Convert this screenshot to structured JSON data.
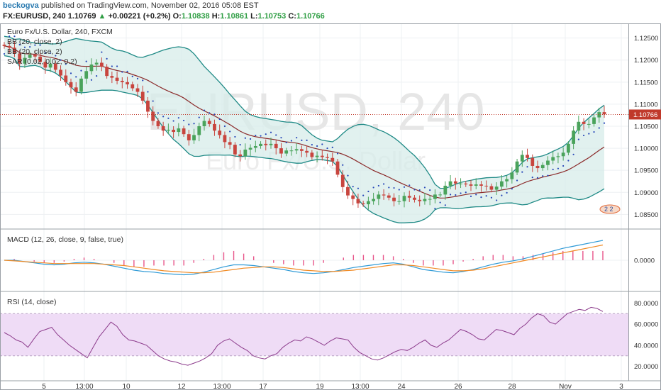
{
  "header": {
    "author": "beckogva",
    "published_text": "published on TradingView.com, November 02, 2016 05:08 EST",
    "symbol": "FX:EURUSD, 240",
    "last": "1.10769",
    "change_arrow": "▲",
    "change": "+0.00221 (+0.2%)",
    "open_label": "O:",
    "open": "1.10838",
    "high_label": "H:",
    "high": "1.10861",
    "low_label": "L:",
    "low": "1.10753",
    "close_label": "C:",
    "close": "1.10766"
  },
  "main_pane": {
    "instrument_label": "Euro Fx/U.S. Dollar, 240, FXCM",
    "indicators": [
      "BB (20, close, 2)",
      "BB (20, close, 2)",
      "SAR (0.02, 0.02, 0.2)"
    ],
    "watermark_symbol": "EURUSD, 240",
    "watermark_name": "Euro Fx/U.S. Dollar",
    "price_axis": [
      "1.12500",
      "1.12000",
      "1.11500",
      "1.11000",
      "1.10500",
      "1.10000",
      "1.09500",
      "1.09000",
      "1.08500"
    ],
    "last_price_tag": "1.10766",
    "event_marker_text": "2 2"
  },
  "macd_pane": {
    "label": "MACD (12, 26, close, 9, false, true)",
    "axis": [
      "0.0000"
    ]
  },
  "rsi_pane": {
    "label": "RSI (14, close)",
    "axis": [
      "80.0000",
      "60.0000",
      "40.0000",
      "20.0000"
    ]
  },
  "time_axis": [
    "5",
    "13:00",
    "10",
    "12",
    "13:00",
    "17",
    "19",
    "13:00",
    "24",
    "26",
    "28",
    "Nov",
    "3"
  ],
  "colors": {
    "up_candle": "#4aa35b",
    "down_candle": "#c8453e",
    "bb_band": "#1f8a86",
    "bb_fill": "#d7ecea",
    "bb_basis": "#8b2a2a",
    "sar": "#2747b8",
    "macd_line": "#2f9ad6",
    "signal_line": "#f08a24",
    "histogram": "#e8558a",
    "rsi_line": "#8b3a8b",
    "rsi_band": "#efdcf6",
    "last_price": "#c0392b"
  },
  "chart_data": [
    {
      "type": "candlestick",
      "title": "Euro Fx/U.S. Dollar, 240, FXCM",
      "ylim": [
        1.082,
        1.128
      ],
      "closes": [
        1.1232,
        1.1228,
        1.1215,
        1.1192,
        1.1205,
        1.1212,
        1.1208,
        1.1196,
        1.1183,
        1.1192,
        1.1178,
        1.1165,
        1.115,
        1.1138,
        1.1128,
        1.1158,
        1.1175,
        1.119,
        1.1194,
        1.1185,
        1.1164,
        1.116,
        1.1153,
        1.115,
        1.1145,
        1.1136,
        1.1128,
        1.1108,
        1.1083,
        1.1062,
        1.105,
        1.104,
        1.1042,
        1.1037,
        1.1045,
        1.1032,
        1.1018,
        1.103,
        1.105,
        1.1062,
        1.1055,
        1.104,
        1.103,
        1.1014,
        1.1008,
        1.0986,
        1.0982,
        1.0997,
        1.1001,
        1.1005,
        1.101,
        1.1007,
        1.101,
        1.1,
        1.0988,
        1.0995,
        1.0995,
        1.0998,
        1.0994,
        1.099,
        1.098,
        1.0983,
        1.098,
        1.0978,
        1.097,
        1.094,
        1.0912,
        1.0893,
        1.0885,
        1.0875,
        1.0873,
        1.088,
        1.0885,
        1.0895,
        1.0893,
        1.0888,
        1.088,
        1.088,
        1.0892,
        1.0888,
        1.0883,
        1.088,
        1.0885,
        1.0885,
        1.0895,
        1.0895,
        1.0915,
        1.0925,
        1.092,
        1.092,
        1.0918,
        1.0915,
        1.0918,
        1.0915,
        1.0914,
        1.0906,
        1.0913,
        1.0925,
        1.093,
        1.0945,
        1.097,
        1.0985,
        1.0978,
        1.096,
        1.0955,
        1.0962,
        1.0972,
        1.098,
        1.0982,
        1.099,
        1.101,
        1.104,
        1.106,
        1.1055,
        1.1055,
        1.107,
        1.1082,
        1.1077
      ]
    },
    {
      "type": "line",
      "title": "MACD (12, 26, close, 9, false, true)",
      "series": [
        {
          "name": "MACD",
          "values": [
            0.0,
            0.0,
            -0.0002,
            -0.0004,
            -0.0006,
            -0.0007,
            -0.0006,
            -0.0004,
            -0.0003,
            -0.0004,
            -0.0006,
            -0.0009,
            -0.0012,
            -0.0015,
            -0.0017,
            -0.0018,
            -0.002,
            -0.0021,
            -0.0022,
            -0.0021,
            -0.0018,
            -0.0014,
            -0.001,
            -0.0007,
            -0.0007,
            -0.0008,
            -0.001,
            -0.0012,
            -0.0014,
            -0.0017,
            -0.0019,
            -0.002,
            -0.0019,
            -0.0017,
            -0.0014,
            -0.0011,
            -0.0009,
            -0.0007,
            -0.0005,
            -0.0004,
            -0.0006,
            -0.001,
            -0.0014,
            -0.0016,
            -0.0018,
            -0.0019,
            -0.0017,
            -0.0014,
            -0.001,
            -0.0006,
            -0.0003,
            -0.0001,
            0.0002,
            0.0006,
            0.001,
            0.0014,
            0.0018,
            0.0021,
            0.0024,
            0.0027,
            0.003
          ]
        },
        {
          "name": "Signal",
          "values": [
            0.0,
            -0.0001,
            -0.0002,
            -0.0003,
            -0.0004,
            -0.0005,
            -0.0005,
            -0.0005,
            -0.0005,
            -0.0005,
            -0.0006,
            -0.0007,
            -0.0008,
            -0.001,
            -0.0012,
            -0.0014,
            -0.0016,
            -0.0017,
            -0.0018,
            -0.0019,
            -0.0019,
            -0.0018,
            -0.0016,
            -0.0014,
            -0.0012,
            -0.0011,
            -0.001,
            -0.001,
            -0.0011,
            -0.0013,
            -0.0015,
            -0.0016,
            -0.0017,
            -0.0017,
            -0.0016,
            -0.0015,
            -0.0013,
            -0.0011,
            -0.0009,
            -0.0007,
            -0.0007,
            -0.0008,
            -0.001,
            -0.0012,
            -0.0014,
            -0.0016,
            -0.0016,
            -0.0015,
            -0.0013,
            -0.001,
            -0.0007,
            -0.0004,
            -0.0001,
            0.0002,
            0.0005,
            0.0008,
            0.0011,
            0.0014,
            0.0017,
            0.002,
            0.0023
          ]
        }
      ]
    },
    {
      "type": "line",
      "title": "RSI (14, close)",
      "ylim": [
        15,
        85
      ],
      "bands": [
        30,
        70
      ],
      "series": [
        {
          "name": "RSI",
          "values": [
            52,
            49,
            45,
            43,
            38,
            46,
            53,
            55,
            57,
            50,
            45,
            40,
            36,
            32,
            28,
            38,
            48,
            55,
            62,
            58,
            50,
            45,
            44,
            42,
            40,
            35,
            30,
            27,
            25,
            24,
            22,
            21,
            23,
            25,
            28,
            32,
            40,
            44,
            46,
            42,
            38,
            35,
            30,
            28,
            27,
            30,
            32,
            38,
            42,
            45,
            44,
            48,
            46,
            43,
            40,
            44,
            47,
            46,
            45,
            38,
            33,
            30,
            27,
            26,
            28,
            31,
            34,
            36,
            35,
            38,
            42,
            45,
            40,
            38,
            42,
            45,
            50,
            55,
            53,
            50,
            46,
            45,
            50,
            55,
            54,
            52,
            50,
            56,
            60,
            66,
            70,
            68,
            62,
            60,
            65,
            70,
            72,
            74,
            73,
            76,
            75,
            72
          ]
        }
      ]
    }
  ]
}
